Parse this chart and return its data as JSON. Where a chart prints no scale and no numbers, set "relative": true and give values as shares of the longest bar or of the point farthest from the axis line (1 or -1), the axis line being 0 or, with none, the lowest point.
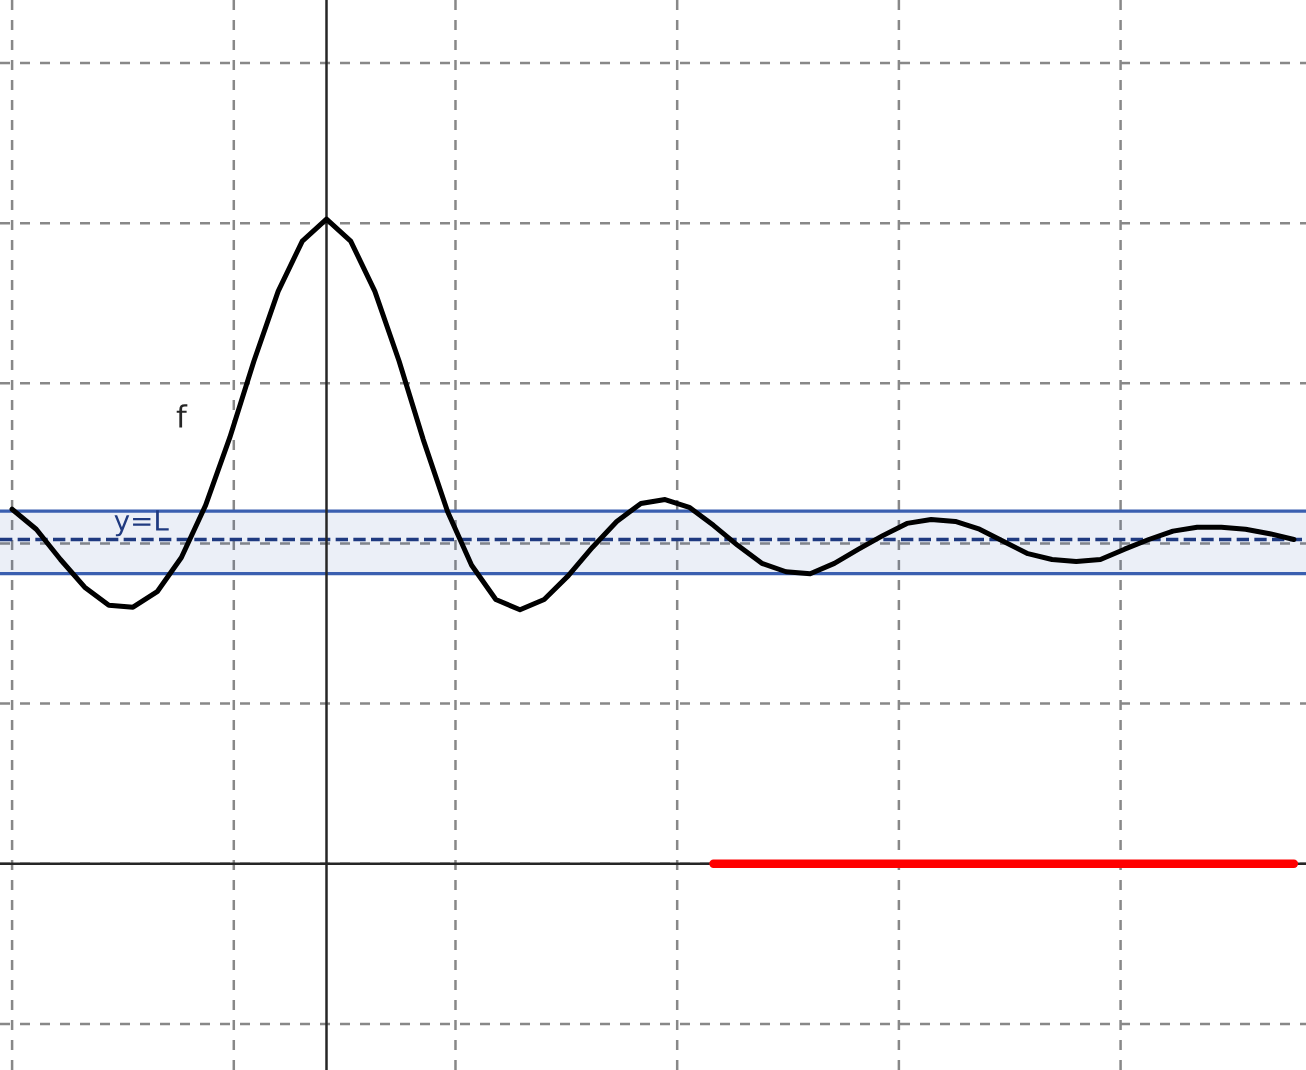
{
  "chart_data": {
    "type": "line",
    "relative": true,
    "grid": true,
    "legend": false,
    "tick_labels": false,
    "marker": "none",
    "categories": [
      null,
      null,
      null,
      null,
      null,
      null,
      null,
      null,
      null,
      null,
      null,
      null,
      null,
      null,
      null,
      null,
      null,
      null,
      null,
      null,
      null,
      null,
      null,
      null,
      null,
      null,
      null,
      null,
      null,
      null,
      null,
      null,
      null,
      null,
      null,
      null,
      null,
      null,
      null,
      null,
      null,
      null,
      null,
      null,
      null,
      null,
      null,
      null,
      null,
      null,
      null,
      null,
      null,
      null
    ],
    "series": [
      {
        "color": "#000000",
        "values": [
          0.55,
          0.519,
          0.472,
          0.429,
          0.401,
          0.398,
          0.422,
          0.475,
          0.556,
          0.661,
          0.78,
          0.888,
          0.966,
          1,
          0.966,
          0.888,
          0.78,
          0.658,
          0.547,
          0.463,
          0.41,
          0.394,
          0.41,
          0.447,
          0.491,
          0.531,
          0.559,
          0.565,
          0.553,
          0.525,
          0.494,
          0.466,
          0.453,
          0.45,
          0.466,
          0.488,
          0.509,
          0.528,
          0.534,
          0.531,
          0.519,
          0.5,
          0.481,
          0.472,
          0.469,
          0.472,
          0.488,
          0.503,
          0.516,
          0.522,
          0.522,
          0.519,
          0.512,
          0.503
        ]
      },
      {
        "color": "#ff0000",
        "values": [
          null,
          null,
          null,
          null,
          null,
          null,
          null,
          null,
          null,
          null,
          null,
          null,
          null,
          null,
          null,
          null,
          null,
          null,
          null,
          null,
          null,
          null,
          null,
          null,
          null,
          null,
          null,
          null,
          null,
          0,
          0,
          0,
          0,
          0,
          0,
          0,
          0,
          0,
          0,
          0,
          0,
          0,
          0,
          0,
          0,
          0,
          0,
          0,
          0,
          0,
          0,
          0,
          0,
          0
        ]
      }
    ],
    "ref_lines": [
      {
        "axis": "y",
        "value": 0.503,
        "label": "y=L",
        "color": "#1f3a80",
        "line_style": "dashed"
      },
      {
        "axis": "y",
        "value": 0.45,
        "color": "#3a5fb0",
        "line_style": "solid"
      },
      {
        "axis": "y",
        "value": 0.547,
        "color": "#3a5fb0",
        "line_style": "solid"
      }
    ],
    "bands": [
      {
        "axis": "y",
        "from": 0.45,
        "to": 0.547,
        "color": "#3a5fb0"
      }
    ],
    "annotations": [
      "f"
    ]
  }
}
